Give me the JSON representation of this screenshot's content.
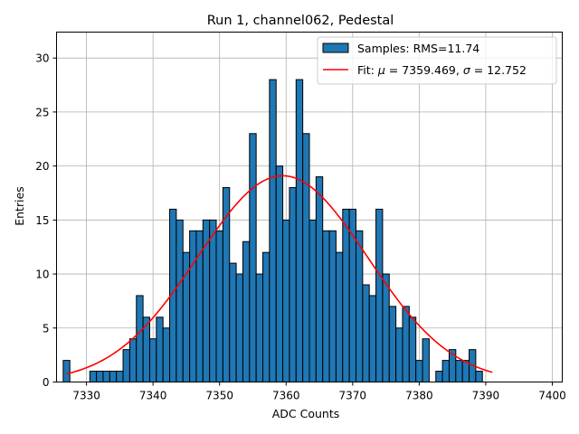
{
  "chart_data": {
    "type": "bar",
    "title": "Run 1, channel062, Pedestal",
    "xlabel": "ADC Counts",
    "ylabel": "Entries",
    "xlim": [
      7325.5,
      7401.5
    ],
    "ylim": [
      0,
      32.4
    ],
    "grid": true,
    "legend_position": "top-right",
    "x_ticks": [
      7330,
      7340,
      7350,
      7360,
      7370,
      7380,
      7390,
      7400
    ],
    "y_ticks": [
      0,
      5,
      10,
      15,
      20,
      25,
      30
    ],
    "bin_width": 1,
    "bin_start": 7327,
    "counts": [
      2,
      0,
      0,
      0,
      1,
      1,
      1,
      1,
      1,
      3,
      4,
      8,
      6,
      4,
      6,
      5,
      16,
      15,
      12,
      14,
      14,
      15,
      15,
      14,
      18,
      11,
      10,
      13,
      23,
      10,
      12,
      28,
      20,
      15,
      18,
      28,
      23,
      15,
      19,
      14,
      14,
      12,
      16,
      16,
      14,
      9,
      8,
      16,
      10,
      7,
      5,
      7,
      6,
      2,
      4,
      0,
      1,
      2,
      3,
      2,
      2,
      3,
      1
    ],
    "series": [
      {
        "name": "Samples: RMS=11.74",
        "kind": "histogram",
        "color": "#1f77b4"
      },
      {
        "name": "Fit: μ = 7359.469, σ = 12.752",
        "kind": "gaussian_fit",
        "mu": 7359.469,
        "sigma": 12.752,
        "amplitude": 19.1,
        "x_range": [
          7327,
          7391
        ],
        "color": "#ff0000"
      }
    ]
  },
  "legend": {
    "samples_label": "Samples: RMS=11.74",
    "fit_prefix": "Fit: ",
    "mu_symbol": "μ",
    "mu_text": " = 7359.469, ",
    "sigma_symbol": "σ",
    "sigma_text": " = 12.752"
  }
}
